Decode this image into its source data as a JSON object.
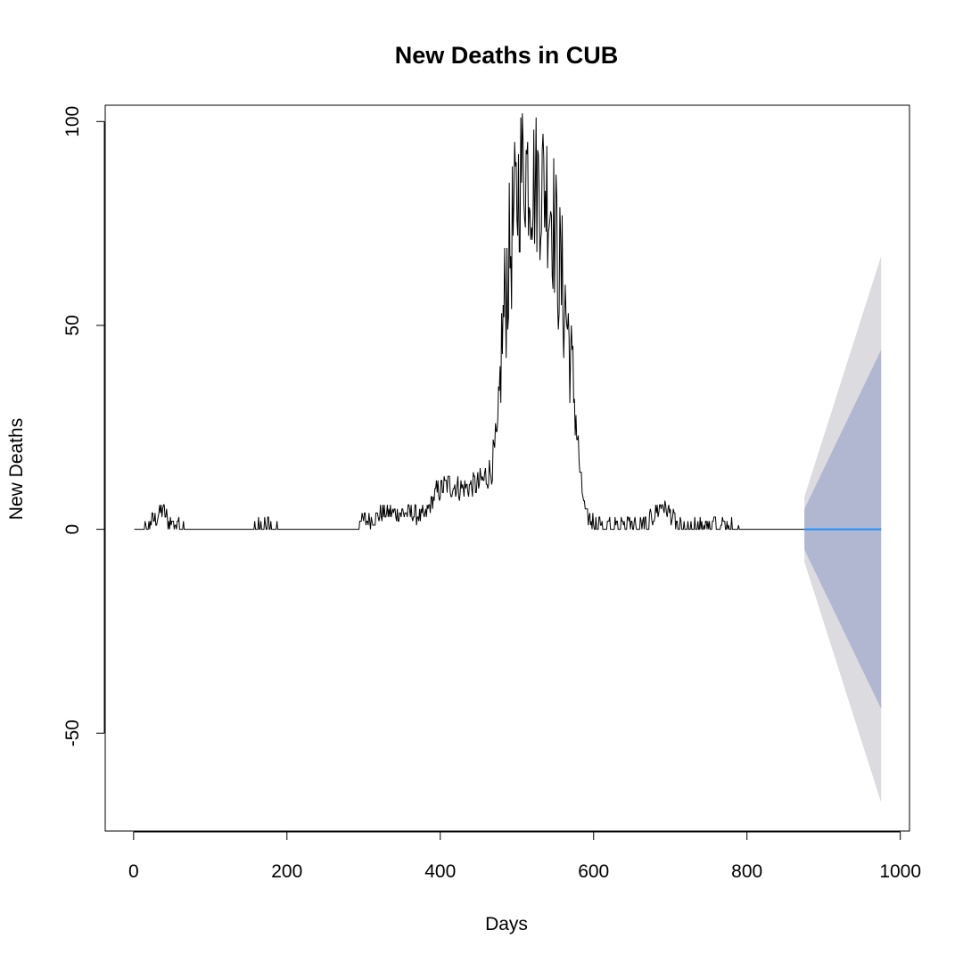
{
  "chart_data": {
    "type": "line",
    "title": "New Deaths in CUB",
    "xlabel": "Days",
    "ylabel": "New Deaths",
    "xlim": [
      -37,
      1012
    ],
    "ylim": [
      -74,
      104
    ],
    "x_ticks": [
      0,
      200,
      400,
      600,
      800,
      1000
    ],
    "y_ticks": [
      -50,
      0,
      50,
      100
    ],
    "grid": false,
    "legend": "none",
    "colors": {
      "observed": "#000000",
      "forecast_mean": "#1E90FF",
      "band_80": "#B1B7D1",
      "band_95": "#DBDBE0"
    },
    "observed": {
      "x_start": 1,
      "x_end": 875,
      "keypoints": [
        [
          1,
          0
        ],
        [
          20,
          1
        ],
        [
          30,
          3
        ],
        [
          38,
          5
        ],
        [
          45,
          2
        ],
        [
          55,
          1
        ],
        [
          70,
          0
        ],
        [
          150,
          0
        ],
        [
          170,
          1
        ],
        [
          200,
          0
        ],
        [
          290,
          0
        ],
        [
          300,
          2
        ],
        [
          330,
          4
        ],
        [
          360,
          4
        ],
        [
          380,
          3
        ],
        [
          395,
          9
        ],
        [
          410,
          11
        ],
        [
          430,
          10
        ],
        [
          450,
          11
        ],
        [
          465,
          14
        ],
        [
          475,
          22
        ],
        [
          480,
          45
        ],
        [
          487,
          62
        ],
        [
          495,
          74
        ],
        [
          505,
          88
        ],
        [
          512,
          90
        ],
        [
          522,
          85
        ],
        [
          535,
          85
        ],
        [
          545,
          80
        ],
        [
          555,
          64
        ],
        [
          565,
          52
        ],
        [
          575,
          32
        ],
        [
          583,
          12
        ],
        [
          590,
          3
        ],
        [
          610,
          1
        ],
        [
          650,
          1
        ],
        [
          670,
          1
        ],
        [
          680,
          4
        ],
        [
          690,
          6
        ],
        [
          700,
          4
        ],
        [
          710,
          1
        ],
        [
          740,
          1
        ],
        [
          785,
          1
        ],
        [
          790,
          0
        ],
        [
          875,
          0
        ]
      ]
    },
    "forecast": {
      "x": [
        875,
        975
      ],
      "mean": [
        0,
        0
      ],
      "band_80": {
        "lower": [
          -5,
          -44
        ],
        "upper": [
          5,
          44
        ]
      },
      "band_95": {
        "lower": [
          -8,
          -67
        ],
        "upper": [
          8,
          67
        ]
      }
    }
  }
}
